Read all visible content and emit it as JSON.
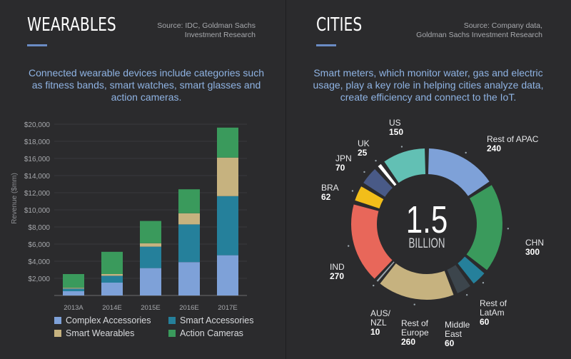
{
  "left": {
    "title": "WEARABLES",
    "source": [
      "Source: IDC, Goldman Sachs",
      "Investment Research"
    ],
    "description": [
      "Connected wearable devices include categories such",
      "as fitness bands, smart watches, smart glasses and",
      "action cameras."
    ]
  },
  "right": {
    "title": "CITIES",
    "source": [
      "Source: Company data,",
      "Goldman Sachs Investment Research"
    ],
    "description": [
      "Smart meters, which monitor water, gas and electric",
      "usage, play a key role in helping cities analyze data,",
      "create efficiency and connect to the IoT."
    ]
  },
  "colors": {
    "accent": "#6b8cc4",
    "complex": "#7ea1d8",
    "smart_acc": "#25809b",
    "wearables": "#c6b27f",
    "cameras": "#3a9a5c"
  },
  "chart_data": [
    {
      "type": "bar",
      "stacked": true,
      "categories": [
        "2013A",
        "2014E",
        "2015E",
        "2016E",
        "2017E"
      ],
      "ylabel": "Revenue ($mm)",
      "ylim": [
        0,
        20000
      ],
      "yticks": [
        2000,
        4000,
        6000,
        8000,
        10000,
        12000,
        14000,
        16000,
        18000,
        20000
      ],
      "ytick_labels": [
        "$2,000",
        "$4,000",
        "$6,000",
        "$8,000",
        "$10,000",
        "$12,000",
        "$14,000",
        "$16,000",
        "$18,000",
        "$20,000"
      ],
      "series": [
        {
          "name": "Complex Accessories",
          "color": "#7ea1d8",
          "values": [
            500,
            1500,
            3200,
            3900,
            4700
          ]
        },
        {
          "name": "Smart Accessories",
          "color": "#25809b",
          "values": [
            300,
            800,
            2500,
            4400,
            6900
          ]
        },
        {
          "name": "Smart Wearables",
          "color": "#c6b27f",
          "values": [
            100,
            200,
            400,
            1300,
            4500
          ]
        },
        {
          "name": "Action Cameras",
          "color": "#3a9a5c",
          "values": [
            1600,
            2600,
            2600,
            2800,
            3500
          ]
        }
      ],
      "legend": "bottom"
    },
    {
      "type": "pie",
      "donut": true,
      "center_value": "1.5",
      "center_label": "BILLION",
      "slices": [
        {
          "label": "Rest of APAC",
          "value": 240,
          "color": "#7ea1d8"
        },
        {
          "label": "CHN",
          "value": 300,
          "color": "#3a9a5c"
        },
        {
          "label": "Rest of LatAm",
          "value": 60,
          "color": "#25809b"
        },
        {
          "label": "Middle East",
          "value": 60,
          "color": "#3c454c"
        },
        {
          "label": "Rest of Europe",
          "value": 260,
          "color": "#c6b27f"
        },
        {
          "label": "AUS/ NZL",
          "value": 10,
          "color": "#9aa6ad"
        },
        {
          "label": "IND",
          "value": 270,
          "color": "#e8675a"
        },
        {
          "label": "BRA",
          "value": 62,
          "color": "#f2be1a"
        },
        {
          "label": "JPN",
          "value": 70,
          "color": "#495a87"
        },
        {
          "label": "UK",
          "value": 25,
          "color": "#ffffff"
        },
        {
          "label": "US",
          "value": 150,
          "color": "#62c0b4"
        }
      ]
    }
  ]
}
